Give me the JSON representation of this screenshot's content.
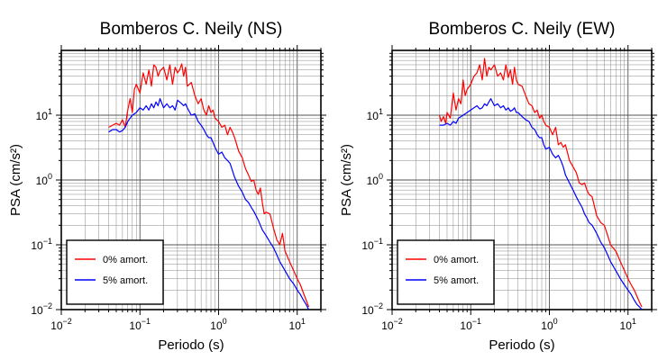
{
  "chart_data": [
    {
      "type": "line",
      "title": "Bomberos C. Neily (NS)",
      "xlabel": "Periodo (s)",
      "ylabel": "PSA (cm/s²)",
      "xscale": "log",
      "yscale": "log",
      "xlim": [
        0.01,
        20
      ],
      "ylim": [
        0.01,
        100
      ],
      "xticks": [
        {
          "base": "10",
          "exp": "−2"
        },
        {
          "base": "10",
          "exp": "−1"
        },
        {
          "base": "10",
          "exp": "0"
        },
        {
          "base": "10",
          "exp": "1"
        }
      ],
      "yticks": [
        {
          "base": "10",
          "exp": "−2"
        },
        {
          "base": "10",
          "exp": "−1"
        },
        {
          "base": "10",
          "exp": "0"
        },
        {
          "base": "10",
          "exp": "1"
        }
      ],
      "grid": true,
      "legend_position": "bottom-left",
      "series": [
        {
          "name": "0% amort.",
          "color": "#ff0000",
          "x": [
            0.04,
            0.045,
            0.05,
            0.055,
            0.06,
            0.065,
            0.07,
            0.075,
            0.08,
            0.085,
            0.09,
            0.1,
            0.11,
            0.12,
            0.13,
            0.14,
            0.15,
            0.16,
            0.17,
            0.18,
            0.2,
            0.22,
            0.24,
            0.26,
            0.28,
            0.3,
            0.32,
            0.34,
            0.36,
            0.38,
            0.4,
            0.45,
            0.5,
            0.55,
            0.6,
            0.65,
            0.7,
            0.75,
            0.8,
            0.85,
            0.9,
            1.0,
            1.1,
            1.2,
            1.3,
            1.4,
            1.5,
            1.6,
            1.8,
            2.0,
            2.2,
            2.4,
            2.6,
            2.8,
            3.0,
            3.2,
            3.4,
            3.6,
            3.8,
            4.0,
            4.5,
            5.0,
            5.5,
            6.0,
            6.5,
            7.0,
            8.0,
            9.0,
            10.0,
            11.0,
            12.0,
            13.0,
            14.0
          ],
          "y": [
            6.5,
            7.0,
            7.5,
            7.0,
            8.5,
            6.5,
            12,
            18,
            11,
            25,
            30,
            22,
            45,
            30,
            50,
            28,
            60,
            55,
            40,
            48,
            55,
            35,
            60,
            30,
            55,
            45,
            50,
            62,
            40,
            55,
            28,
            32,
            20,
            15,
            18,
            12,
            10,
            14,
            11,
            12,
            9,
            8,
            6.5,
            7,
            5,
            6.5,
            5.5,
            4.5,
            2.8,
            2.2,
            1.5,
            1.2,
            0.95,
            1.0,
            0.7,
            0.6,
            0.75,
            0.45,
            0.3,
            0.32,
            0.3,
            0.18,
            0.12,
            0.1,
            0.15,
            0.08,
            0.055,
            0.04,
            0.03,
            0.024,
            0.018,
            0.014,
            0.011
          ]
        },
        {
          "name": "5% amort.",
          "color": "#0000ff",
          "x": [
            0.04,
            0.045,
            0.05,
            0.055,
            0.06,
            0.065,
            0.07,
            0.075,
            0.08,
            0.09,
            0.1,
            0.11,
            0.12,
            0.13,
            0.14,
            0.15,
            0.16,
            0.17,
            0.18,
            0.2,
            0.22,
            0.24,
            0.26,
            0.28,
            0.3,
            0.32,
            0.34,
            0.36,
            0.38,
            0.4,
            0.45,
            0.5,
            0.55,
            0.6,
            0.65,
            0.7,
            0.75,
            0.8,
            0.85,
            0.9,
            1.0,
            1.1,
            1.2,
            1.3,
            1.4,
            1.5,
            1.6,
            1.8,
            2.0,
            2.2,
            2.4,
            2.6,
            2.8,
            3.0,
            3.2,
            3.4,
            3.6,
            4.0,
            4.5,
            5.0,
            5.5,
            6.0,
            7.0,
            8.0,
            9.0,
            10.0,
            11.0,
            12.0,
            13.0,
            14.0
          ],
          "y": [
            5.5,
            6.0,
            6.0,
            5.5,
            5.8,
            6.5,
            8,
            9,
            10,
            11,
            13,
            12,
            14,
            12,
            15,
            13,
            16,
            14,
            18,
            13,
            15,
            13,
            14,
            12,
            17,
            16,
            15,
            14,
            15,
            13,
            10,
            10.5,
            8,
            7,
            6,
            5,
            4.5,
            4.5,
            3.8,
            3.2,
            2.5,
            2.7,
            2.2,
            2.0,
            1.8,
            1.4,
            1.1,
            0.8,
            0.65,
            0.5,
            0.45,
            0.38,
            0.33,
            0.28,
            0.24,
            0.2,
            0.17,
            0.14,
            0.11,
            0.09,
            0.07,
            0.055,
            0.04,
            0.03,
            0.025,
            0.02,
            0.017,
            0.014,
            0.012,
            0.01
          ]
        }
      ]
    },
    {
      "type": "line",
      "title": "Bomberos C. Neily (EW)",
      "xlabel": "Periodo (s)",
      "ylabel": "PSA (cm/s²)",
      "xscale": "log",
      "yscale": "log",
      "xlim": [
        0.01,
        20
      ],
      "ylim": [
        0.01,
        100
      ],
      "xticks": [
        {
          "base": "10",
          "exp": "−2"
        },
        {
          "base": "10",
          "exp": "−1"
        },
        {
          "base": "10",
          "exp": "0"
        },
        {
          "base": "10",
          "exp": "1"
        }
      ],
      "yticks": [
        {
          "base": "10",
          "exp": "−2"
        },
        {
          "base": "10",
          "exp": "−1"
        },
        {
          "base": "10",
          "exp": "0"
        },
        {
          "base": "10",
          "exp": "1"
        }
      ],
      "grid": true,
      "legend_position": "bottom-left",
      "series": [
        {
          "name": "0% amort.",
          "color": "#ff0000",
          "x": [
            0.04,
            0.042,
            0.045,
            0.048,
            0.05,
            0.055,
            0.06,
            0.065,
            0.07,
            0.075,
            0.08,
            0.085,
            0.09,
            0.1,
            0.11,
            0.12,
            0.13,
            0.14,
            0.15,
            0.16,
            0.17,
            0.18,
            0.2,
            0.22,
            0.24,
            0.26,
            0.28,
            0.3,
            0.32,
            0.34,
            0.36,
            0.38,
            0.4,
            0.45,
            0.5,
            0.55,
            0.6,
            0.65,
            0.7,
            0.75,
            0.8,
            0.85,
            0.9,
            1.0,
            1.1,
            1.2,
            1.3,
            1.4,
            1.5,
            1.6,
            1.8,
            2.0,
            2.2,
            2.4,
            2.6,
            2.8,
            3.0,
            3.2,
            3.5,
            4.0,
            4.5,
            5.0,
            5.5,
            6.0,
            7.0,
            8.0,
            9.0,
            10.0,
            11.0,
            12.0,
            13.0,
            14.0,
            15.0
          ],
          "y": [
            10,
            8,
            9.5,
            7.5,
            11,
            9,
            22,
            12,
            18,
            15,
            35,
            20,
            25,
            30,
            40,
            45,
            60,
            35,
            75,
            40,
            55,
            50,
            60,
            40,
            45,
            35,
            60,
            38,
            50,
            30,
            55,
            35,
            30,
            28,
            20,
            15,
            14,
            11,
            12,
            9,
            10,
            8,
            7,
            6.5,
            5,
            6.5,
            3.5,
            3.8,
            3.2,
            3.5,
            2.0,
            1.6,
            1.3,
            0.9,
            0.85,
            0.9,
            0.7,
            0.6,
            0.55,
            0.28,
            0.22,
            0.2,
            0.14,
            0.1,
            0.08,
            0.055,
            0.04,
            0.03,
            0.024,
            0.02,
            0.016,
            0.013,
            0.011
          ]
        },
        {
          "name": "5% amort.",
          "color": "#0000ff",
          "x": [
            0.04,
            0.045,
            0.05,
            0.055,
            0.06,
            0.065,
            0.07,
            0.075,
            0.08,
            0.09,
            0.1,
            0.11,
            0.12,
            0.13,
            0.14,
            0.15,
            0.16,
            0.17,
            0.18,
            0.2,
            0.22,
            0.24,
            0.26,
            0.28,
            0.3,
            0.32,
            0.34,
            0.36,
            0.38,
            0.4,
            0.45,
            0.5,
            0.55,
            0.6,
            0.65,
            0.7,
            0.75,
            0.8,
            0.85,
            0.9,
            1.0,
            1.1,
            1.2,
            1.3,
            1.4,
            1.5,
            1.6,
            1.8,
            2.0,
            2.2,
            2.4,
            2.6,
            2.8,
            3.0,
            3.2,
            3.5,
            4.0,
            4.5,
            5.0,
            5.5,
            6.0,
            7.0,
            8.0,
            9.0,
            10.0,
            11.0,
            12.0,
            13.0,
            14.0,
            15.0
          ],
          "y": [
            7,
            7,
            7.5,
            7,
            8,
            7.5,
            9,
            9.5,
            10,
            11,
            12,
            13,
            14,
            12.5,
            13,
            15,
            14,
            16,
            18,
            14,
            15,
            13,
            14,
            12,
            13,
            11.5,
            12,
            13,
            11,
            11,
            9.5,
            8.5,
            8,
            6.5,
            6,
            5,
            4.5,
            4.5,
            3.5,
            3.0,
            3.2,
            2.5,
            2.2,
            2.4,
            2.0,
            1.6,
            1.2,
            0.9,
            0.7,
            0.55,
            0.45,
            0.38,
            0.3,
            0.26,
            0.22,
            0.2,
            0.15,
            0.11,
            0.09,
            0.07,
            0.055,
            0.04,
            0.03,
            0.024,
            0.02,
            0.017,
            0.014,
            0.012,
            0.011,
            0.01
          ]
        }
      ]
    }
  ]
}
